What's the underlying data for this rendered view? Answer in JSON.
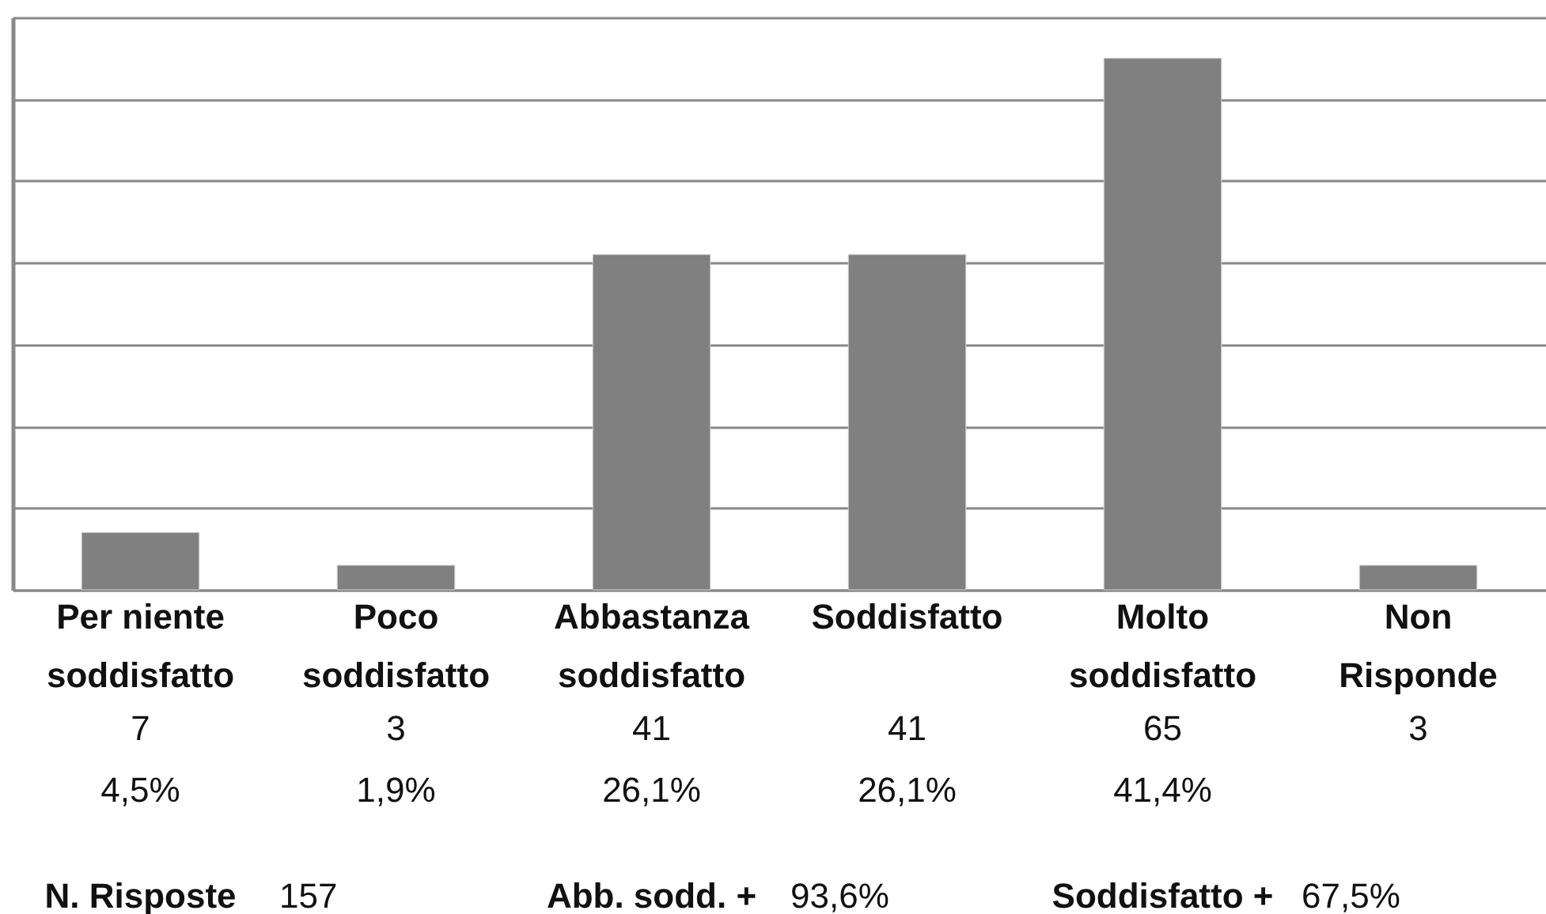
{
  "chart_data": {
    "type": "bar",
    "categories": [
      "Per niente soddisfatto",
      "Poco soddisfatto",
      "Abbastanza soddisfatto",
      "Soddisfatto",
      "Molto soddisfatto",
      "Non Risponde"
    ],
    "values": [
      7,
      3,
      41,
      41,
      65,
      3
    ],
    "color": "#808080",
    "grid": "y",
    "tick_labels": "x",
    "data_labels": true,
    "annotations": [
      "4,5%",
      "1,9%",
      "26,1%",
      "26,1%",
      "41,4%",
      "N. Risposte",
      "157",
      "Abb. sodd. +",
      "93,6%",
      "Soddisfatto +",
      "67,5%"
    ]
  }
}
